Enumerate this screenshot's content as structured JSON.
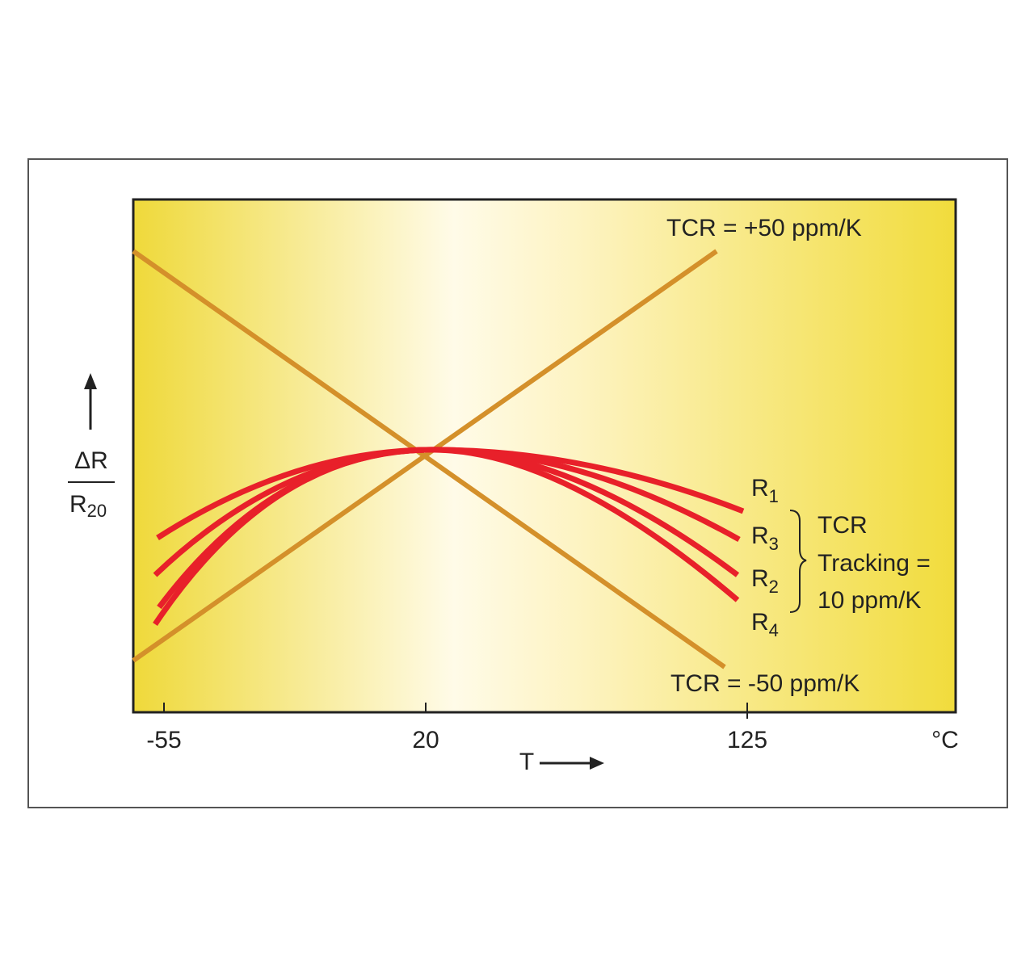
{
  "axes": {
    "y_label": {
      "numerator": "ΔR",
      "denominator": "R",
      "denominator_sub": "20"
    },
    "x_label": "T",
    "x_unit": "°C",
    "x_ticks": [
      "-55",
      "20",
      "125"
    ]
  },
  "lines": [
    {
      "label": "TCR = +50 ppm/K"
    },
    {
      "label": "TCR = -50 ppm/K"
    }
  ],
  "curves": [
    {
      "label": "R",
      "sub": "1"
    },
    {
      "label": "R",
      "sub": "3"
    },
    {
      "label": "R",
      "sub": "2"
    },
    {
      "label": "R",
      "sub": "4"
    }
  ],
  "tracking": [
    "TCR",
    "Tracking =",
    "10 ppm/K"
  ]
}
